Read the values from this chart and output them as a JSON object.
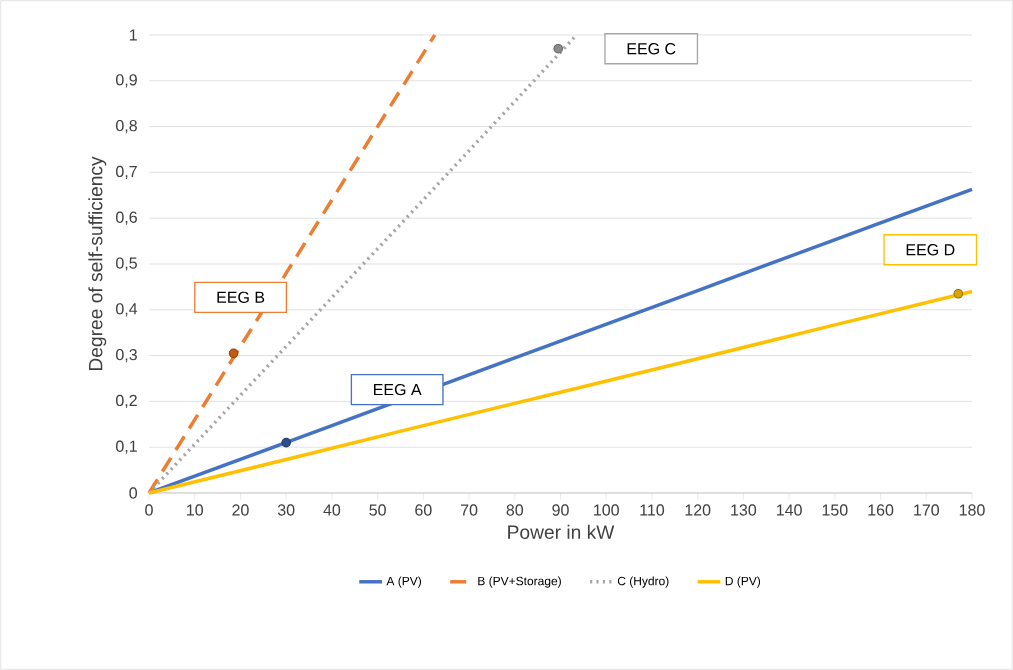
{
  "chart_data": {
    "type": "line",
    "xlabel": "Power in kW",
    "ylabel": "Degree of self-sufficiency",
    "xlim": [
      0,
      180
    ],
    "ylim": [
      0,
      1
    ],
    "xticks": [
      0,
      10,
      20,
      30,
      40,
      50,
      60,
      70,
      80,
      90,
      100,
      110,
      120,
      130,
      140,
      150,
      160,
      170,
      180
    ],
    "yticks": [
      0,
      {
        "value": 0.1,
        "label": "0,1"
      },
      {
        "value": 0.2,
        "label": "0,2"
      },
      {
        "value": 0.3,
        "label": "0,3"
      },
      {
        "value": 0.4,
        "label": "0,4"
      },
      {
        "value": 0.5,
        "label": "0,5"
      },
      {
        "value": 0.6,
        "label": "0,6"
      },
      {
        "value": 0.7,
        "label": "0,7"
      },
      {
        "value": 0.8,
        "label": "0,8"
      },
      {
        "value": 0.9,
        "label": "0,9"
      },
      1
    ],
    "grid": "y",
    "legend": "bottom",
    "series": [
      {
        "name": "A (PV)",
        "color": "#4472c4",
        "line_style": "solid",
        "x": [
          0,
          40,
          80,
          120,
          160,
          180
        ],
        "values": [
          0,
          0.147,
          0.295,
          0.442,
          0.59,
          0.663
        ]
      },
      {
        "name": "B (PV+Storage)",
        "color": "#ed7d31",
        "line_style": "dashed",
        "x": [
          0,
          10,
          20,
          30,
          40,
          50,
          62.5
        ],
        "values": [
          0,
          0.16,
          0.32,
          0.48,
          0.64,
          0.8,
          1
        ]
      },
      {
        "name": "C (Hydro)",
        "color": "#a5a5a5",
        "line_style": "dotted",
        "x": [
          0,
          30,
          60,
          93.5
        ],
        "values": [
          0,
          0.32,
          0.64,
          1
        ]
      },
      {
        "name": "D (PV)",
        "color": "#ffc000",
        "line_style": "solid",
        "x": [
          0,
          30,
          60,
          90,
          120,
          150,
          180
        ],
        "values": [
          0,
          0.073,
          0.147,
          0.22,
          0.293,
          0.367,
          0.44
        ]
      },
      {
        "type": "scatter",
        "marker": "circle",
        "color": "#2e4f8f",
        "x": [
          30
        ],
        "values": [
          0.11
        ]
      },
      {
        "type": "scatter",
        "marker": "circle",
        "color": "#c55a11",
        "x": [
          18.5
        ],
        "values": [
          0.305
        ]
      },
      {
        "type": "scatter",
        "marker": "circle",
        "color": "#8c8c8c",
        "x": [
          89.5
        ],
        "values": [
          0.97
        ]
      },
      {
        "type": "scatter",
        "marker": "circle",
        "color": "#d9a300",
        "x": [
          177
        ],
        "values": [
          0.435
        ]
      }
    ],
    "annotations": [
      "EEG A",
      "EEG B",
      "EEG C",
      "EEG D"
    ]
  }
}
